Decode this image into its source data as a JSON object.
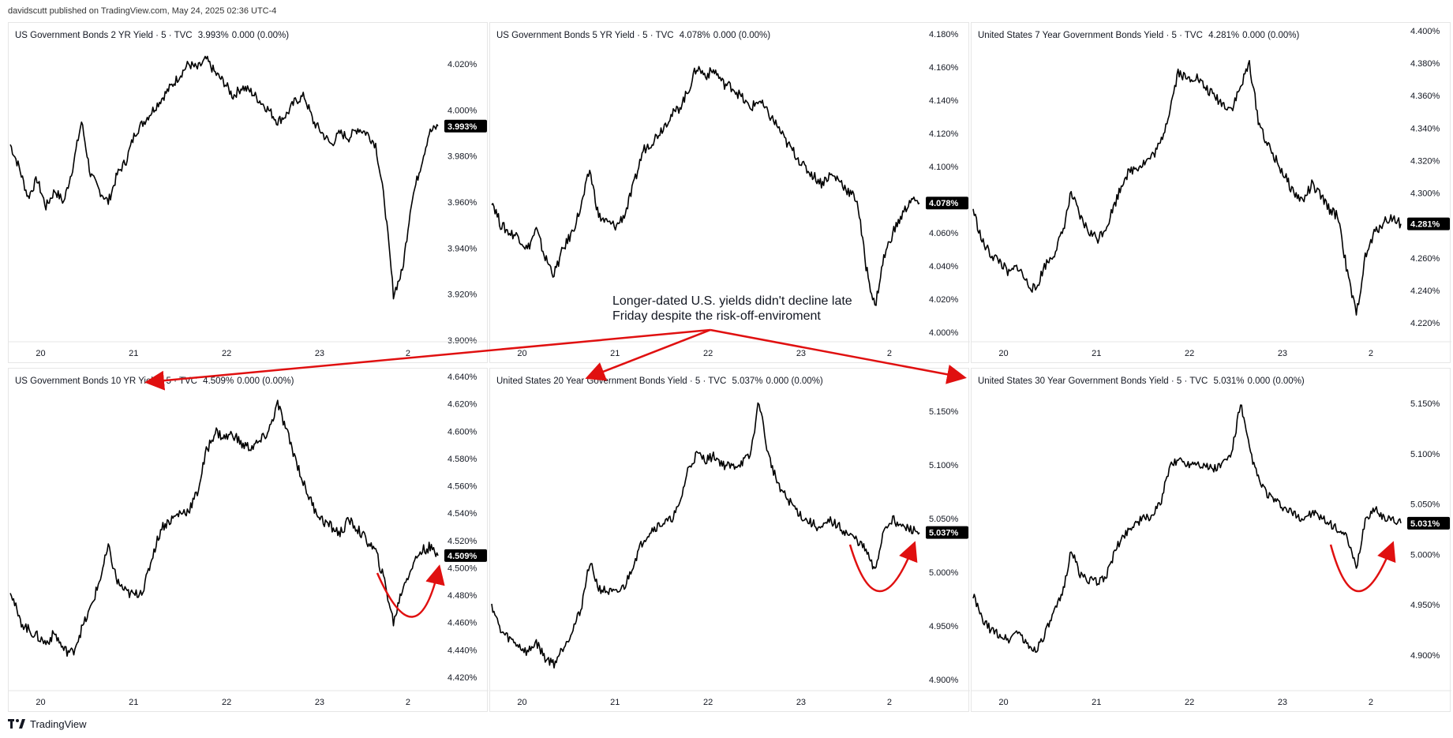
{
  "publisher": "davidscutt published on TradingView.com, May 24, 2025 02:36 UTC-4",
  "footer": {
    "brand": "TradingView"
  },
  "annotation": {
    "text": "Longer-dated U.S. yields didn't decline late\nFriday despite the risk-off-enviroment",
    "color": "#e01010"
  },
  "colors": {
    "line": "#000000",
    "badge": "#000000",
    "arrow": "#e01010"
  },
  "chart_data": [
    {
      "type": "line",
      "title": "US Government Bonds 2 YR Yield · 5 · TVC",
      "last_value": "3.993%",
      "change": "0.000 (0.00%)",
      "yticks": [
        "4.020%",
        "4.000%",
        "3.980%",
        "3.960%",
        "3.940%",
        "3.920%",
        "3.900%"
      ],
      "ylim": [
        3.9,
        4.026
      ],
      "xticks": [
        "20",
        "21",
        "22",
        "23",
        "2⁠"
      ],
      "series": [
        {
          "values": [
            3.985,
            3.975,
            3.962,
            3.97,
            3.958,
            3.965,
            3.96,
            3.975,
            3.995,
            3.972,
            3.965,
            3.96,
            3.972,
            3.978,
            3.99,
            3.995,
            4.0,
            4.005,
            4.01,
            4.015,
            4.02,
            4.018,
            4.022,
            4.016,
            4.012,
            4.006,
            4.01,
            4.008,
            4.004,
            4.0,
            3.995,
            3.998,
            4.004,
            4.006,
            3.995,
            3.99,
            3.985,
            3.99,
            3.988,
            3.992,
            3.99,
            3.985,
            3.96,
            3.92,
            3.93,
            3.96,
            3.975,
            3.99,
            3.993
          ]
        }
      ]
    },
    {
      "type": "line",
      "title": "US Government Bonds 5 YR Yield · 5 · TVC",
      "last_value": "4.078%",
      "change": "0.000 (0.00%)",
      "yticks": [
        "4.180%",
        "4.160%",
        "4.140%",
        "4.120%",
        "4.100%",
        "4.080%",
        "4.060%",
        "4.040%",
        "4.020%",
        "4.000%"
      ],
      "ylim": [
        4.0,
        4.18
      ],
      "xticks": [
        "20",
        "21",
        "22",
        "23",
        "2⁠"
      ],
      "series": [
        {
          "values": [
            4.08,
            4.065,
            4.06,
            4.058,
            4.05,
            4.062,
            4.045,
            4.035,
            4.05,
            4.06,
            4.075,
            4.098,
            4.07,
            4.066,
            4.064,
            4.072,
            4.09,
            4.11,
            4.115,
            4.122,
            4.13,
            4.135,
            4.145,
            4.16,
            4.155,
            4.158,
            4.15,
            4.148,
            4.142,
            4.135,
            4.14,
            4.132,
            4.125,
            4.115,
            4.108,
            4.1,
            4.095,
            4.09,
            4.095,
            4.092,
            4.085,
            4.08,
            4.04,
            4.015,
            4.045,
            4.06,
            4.07,
            4.08,
            4.078
          ]
        }
      ]
    },
    {
      "type": "line",
      "title": "United States 7 Year Government Bonds Yield · 5 · TVC",
      "last_value": "4.281%",
      "change": "0.000 (0.00%)",
      "yticks": [
        "4.400%",
        "4.380%",
        "4.360%",
        "4.340%",
        "4.320%",
        "4.300%",
        "4.280%",
        "4.260%",
        "4.240%",
        "4.220%"
      ],
      "ylim": [
        4.21,
        4.402
      ],
      "xticks": [
        "20",
        "21",
        "22",
        "23",
        "2⁠"
      ],
      "series": [
        {
          "values": [
            4.29,
            4.27,
            4.262,
            4.258,
            4.25,
            4.255,
            4.245,
            4.24,
            4.255,
            4.262,
            4.275,
            4.3,
            4.285,
            4.276,
            4.272,
            4.28,
            4.295,
            4.31,
            4.315,
            4.318,
            4.322,
            4.33,
            4.35,
            4.375,
            4.37,
            4.372,
            4.365,
            4.36,
            4.355,
            4.352,
            4.365,
            4.38,
            4.345,
            4.33,
            4.32,
            4.31,
            4.3,
            4.295,
            4.305,
            4.298,
            4.29,
            4.285,
            4.25,
            4.225,
            4.26,
            4.275,
            4.282,
            4.285,
            4.281
          ]
        }
      ]
    },
    {
      "type": "line",
      "title": "US Government Bonds 10 YR Yield · 5 · TVC",
      "last_value": "4.509%",
      "change": "0.000 (0.00%)",
      "yticks": [
        "4.640%",
        "4.620%",
        "4.600%",
        "4.580%",
        "4.560%",
        "4.540%",
        "4.520%",
        "4.500%",
        "4.480%",
        "4.460%",
        "4.440%",
        "4.420%"
      ],
      "ylim": [
        4.418,
        4.642
      ],
      "xticks": [
        "20",
        "21",
        "22",
        "23",
        "2⁠"
      ],
      "series": [
        {
          "values": [
            4.485,
            4.462,
            4.455,
            4.45,
            4.445,
            4.452,
            4.44,
            4.438,
            4.455,
            4.47,
            4.49,
            4.515,
            4.49,
            4.482,
            4.48,
            4.485,
            4.51,
            4.53,
            4.535,
            4.54,
            4.542,
            4.555,
            4.585,
            4.6,
            4.595,
            4.598,
            4.59,
            4.588,
            4.592,
            4.6,
            4.62,
            4.6,
            4.58,
            4.56,
            4.545,
            4.535,
            4.53,
            4.525,
            4.535,
            4.528,
            4.52,
            4.512,
            4.49,
            4.46,
            4.485,
            4.5,
            4.512,
            4.515,
            4.509
          ]
        }
      ]
    },
    {
      "type": "line",
      "title": "United States 20 Year Government Bonds Yield · 5 · TVC",
      "last_value": "5.037%",
      "change": "0.000 (0.00%)",
      "yticks": [
        "5.150%",
        "5.100%",
        "5.050%",
        "5.000%",
        "4.950%",
        "4.900%"
      ],
      "ylim": [
        4.895,
        5.172
      ],
      "xticks": [
        "20",
        "21",
        "22",
        "23",
        "2⁠"
      ],
      "series": [
        {
          "values": [
            4.97,
            4.945,
            4.938,
            4.932,
            4.925,
            4.935,
            4.92,
            4.915,
            4.93,
            4.945,
            4.965,
            5.01,
            4.985,
            4.982,
            4.98,
            4.988,
            5.01,
            5.03,
            5.04,
            5.045,
            5.048,
            5.06,
            5.095,
            5.11,
            5.105,
            5.108,
            5.1,
            5.098,
            5.102,
            5.108,
            5.16,
            5.11,
            5.085,
            5.07,
            5.06,
            5.05,
            5.045,
            5.04,
            5.048,
            5.042,
            5.035,
            5.03,
            5.02,
            5.0,
            5.04,
            5.05,
            5.042,
            5.04,
            5.037
          ]
        }
      ]
    },
    {
      "type": "line",
      "title": "United States 30 Year Government Bonds Yield · 5 · TVC",
      "last_value": "5.031%",
      "change": "0.000 (0.00%)",
      "yticks": [
        "5.150%",
        "5.100%",
        "5.050%",
        "5.000%",
        "4.950%",
        "4.900%"
      ],
      "ylim": [
        4.885,
        5.165
      ],
      "xticks": [
        "20",
        "21",
        "22",
        "23",
        "2⁠"
      ],
      "series": [
        {
          "values": [
            4.96,
            4.935,
            4.925,
            4.92,
            4.915,
            4.925,
            4.91,
            4.905,
            4.92,
            4.94,
            4.96,
            5.005,
            4.98,
            4.975,
            4.972,
            4.98,
            5.005,
            5.02,
            5.03,
            5.035,
            5.038,
            5.05,
            5.085,
            5.095,
            5.09,
            5.092,
            5.088,
            5.085,
            5.09,
            5.1,
            5.15,
            5.105,
            5.075,
            5.06,
            5.052,
            5.045,
            5.04,
            5.035,
            5.042,
            5.036,
            5.03,
            5.025,
            5.015,
            4.985,
            5.035,
            5.045,
            5.038,
            5.034,
            5.031
          ]
        }
      ]
    }
  ]
}
